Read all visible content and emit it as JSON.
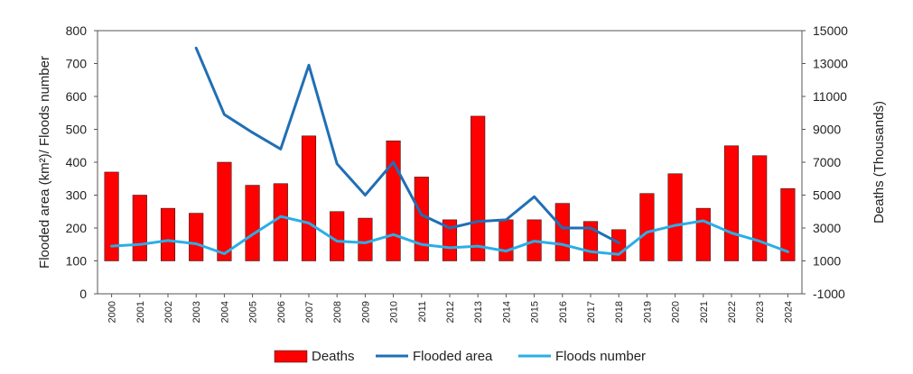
{
  "chart_data": {
    "type": "bar",
    "title": "",
    "xlabel": "",
    "ylabel_left": "Flooded area (km²)/ Floods number",
    "ylabel_right": "Deaths (Thousands)",
    "ylim_left": [
      0,
      800
    ],
    "yticks_left": [
      "0",
      "100",
      "200",
      "300",
      "400",
      "500",
      "600",
      "700",
      "800"
    ],
    "ylim_right": [
      -1000,
      15000
    ],
    "yticks_right": [
      "-1000",
      "1000",
      "3000",
      "5000",
      "7000",
      "9000",
      "11000",
      "13000",
      "15000"
    ],
    "categories": [
      "2000",
      "2001",
      "2002",
      "2003",
      "2004",
      "2005",
      "2006",
      "2007",
      "2008",
      "2009",
      "2010",
      "2011",
      "2012",
      "2013",
      "2014",
      "2015",
      "2016",
      "2017",
      "2018",
      "2019",
      "2020",
      "2021",
      "2022",
      "2023",
      "2024"
    ],
    "legend_position": "bottom",
    "series": [
      {
        "name": "Deaths",
        "type": "bar",
        "axis": "right",
        "color": "#ff0000",
        "values": [
          6400,
          5000,
          4200,
          3900,
          7000,
          5600,
          5700,
          8600,
          4000,
          3600,
          8300,
          6100,
          3500,
          9800,
          3500,
          3500,
          4500,
          3400,
          2900,
          5100,
          6300,
          4200,
          8000,
          7400,
          5400
        ]
      },
      {
        "name": "Flooded area",
        "type": "line",
        "axis": "left",
        "color": "#1f6fb5",
        "values": [
          null,
          null,
          null,
          747,
          545,
          490,
          440,
          695,
          395,
          300,
          400,
          240,
          200,
          220,
          225,
          295,
          200,
          200,
          155,
          null,
          null,
          null,
          null,
          null,
          null
        ]
      },
      {
        "name": "Floods number",
        "type": "line",
        "axis": "left",
        "color": "#2aaee6",
        "values": [
          145,
          150,
          162,
          152,
          122,
          180,
          235,
          215,
          160,
          155,
          180,
          150,
          140,
          145,
          130,
          160,
          150,
          128,
          120,
          187,
          208,
          222,
          185,
          160,
          128
        ]
      }
    ]
  }
}
